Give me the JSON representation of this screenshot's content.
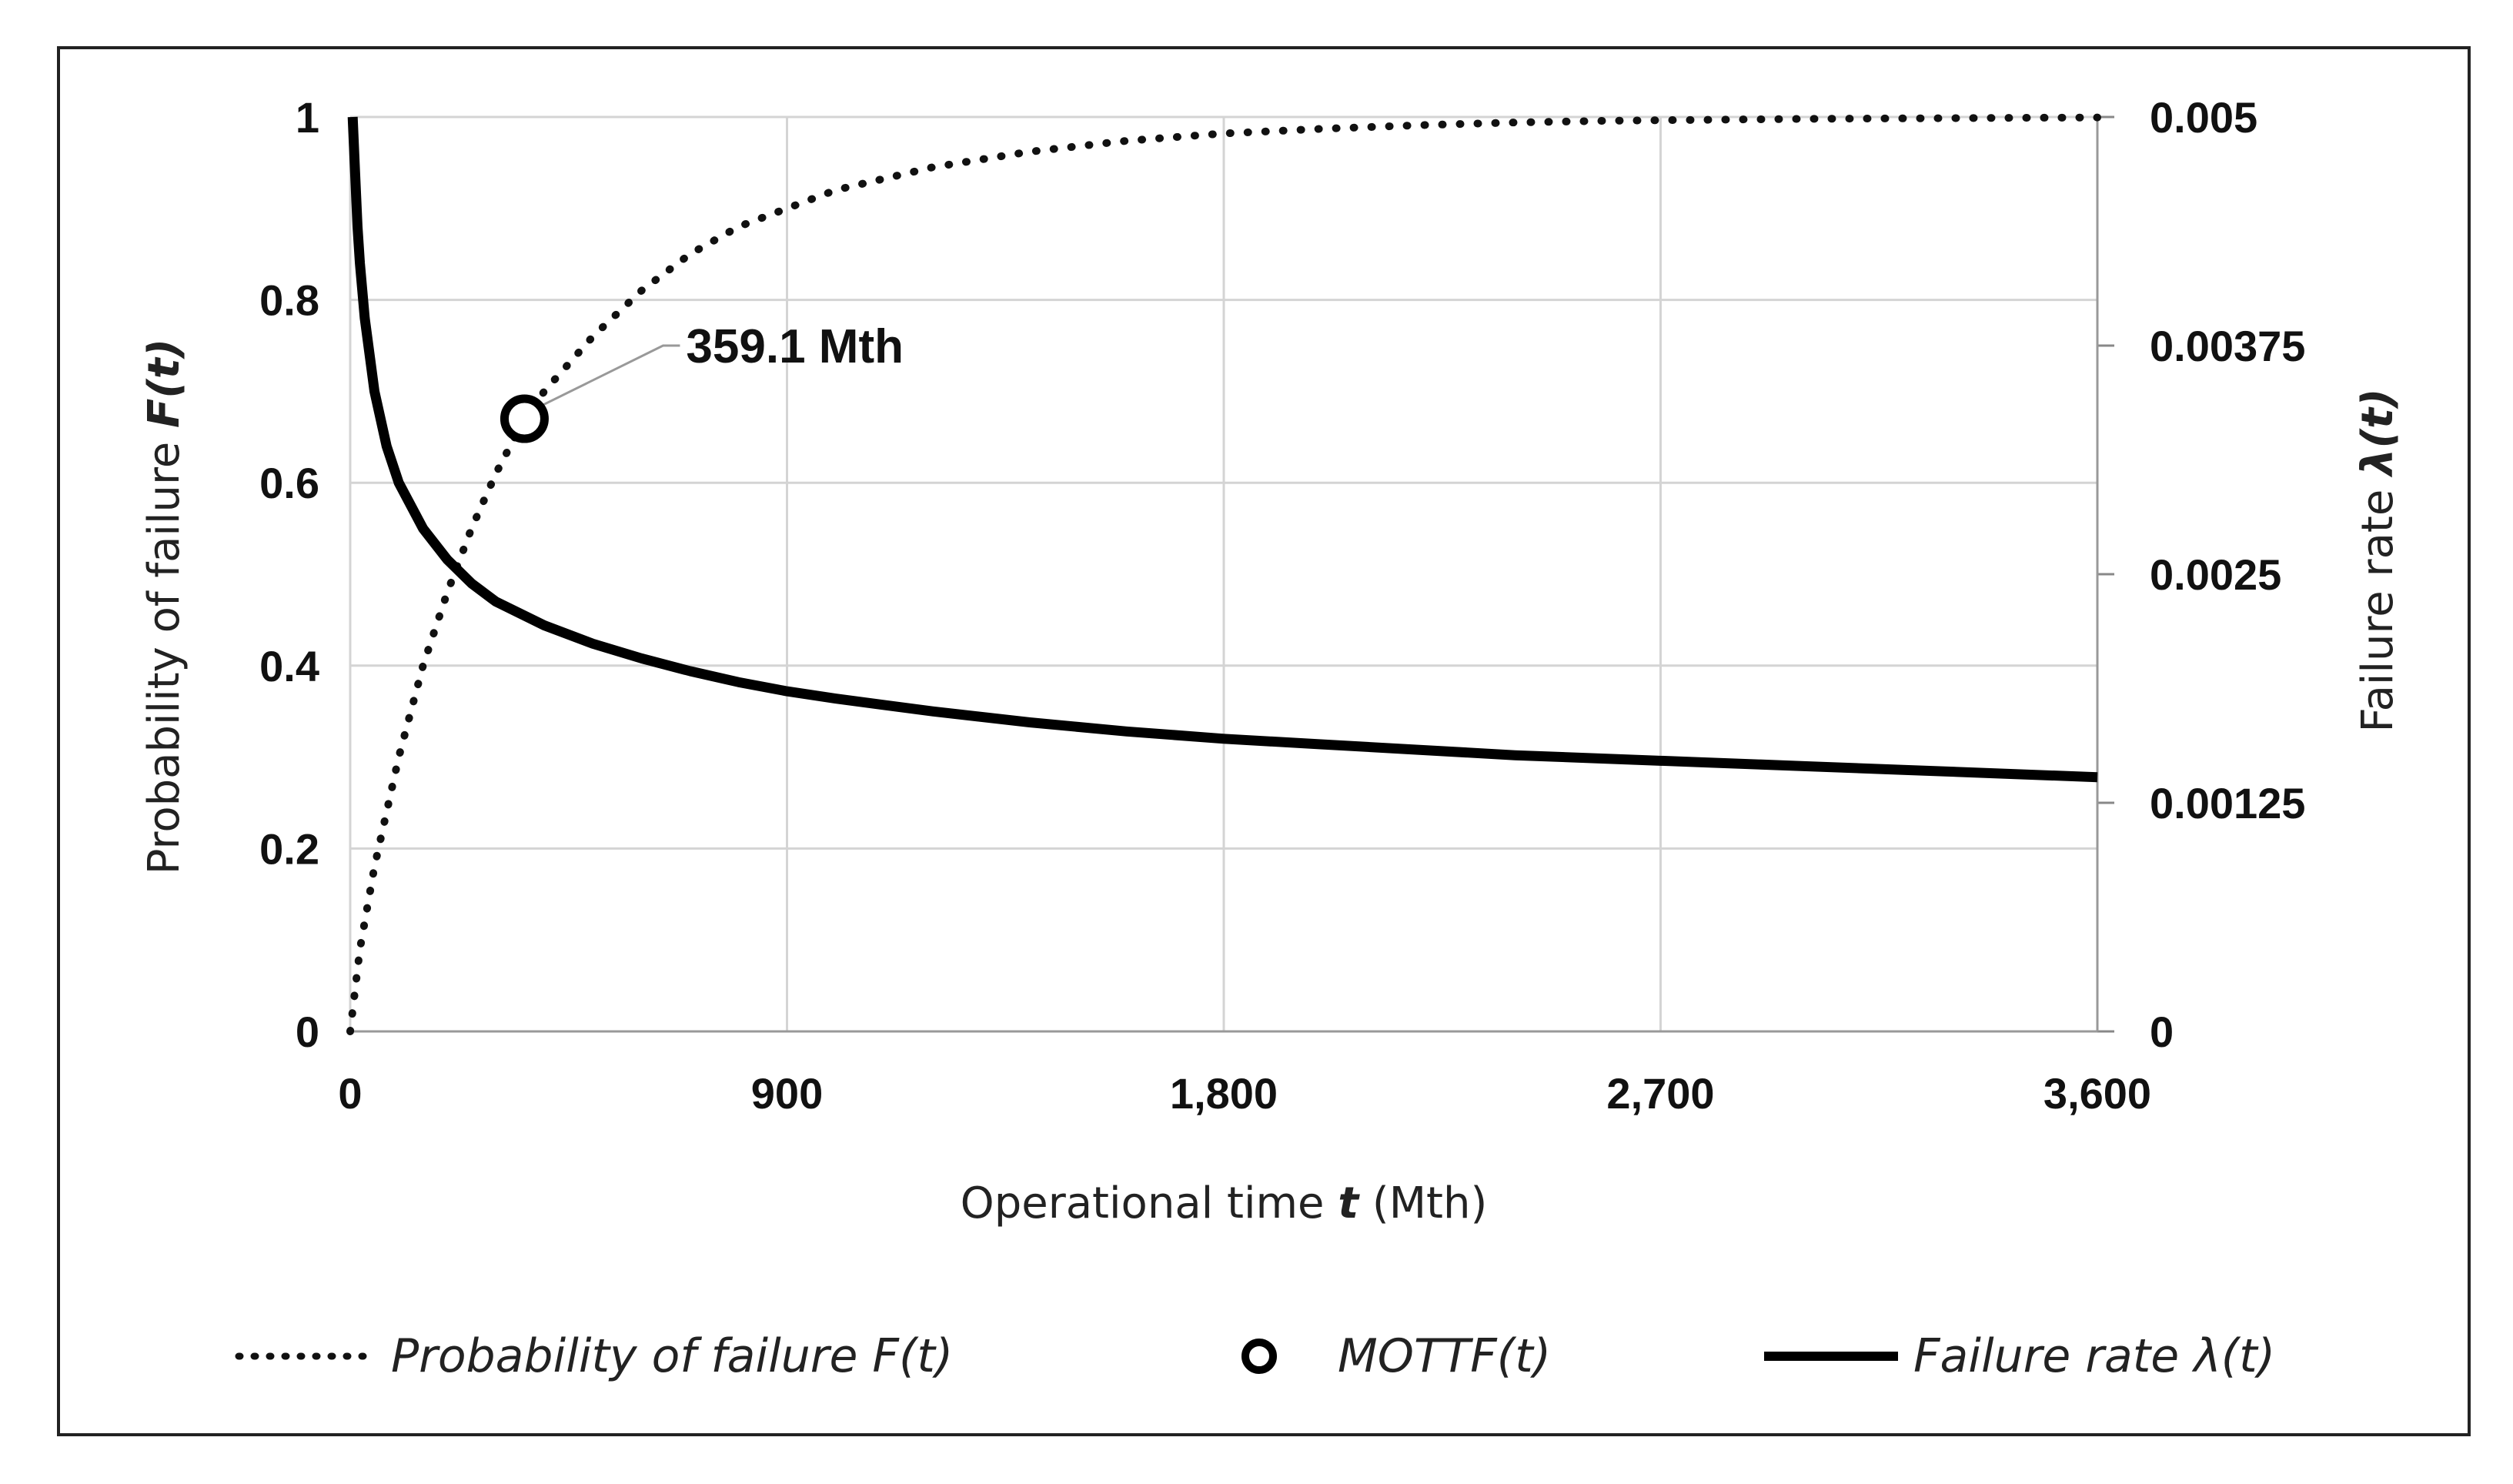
{
  "chart_data": {
    "type": "line",
    "title": "",
    "x": {
      "label_prefix": "Operational time ",
      "label_var": "t",
      "label_suffix": " (Mth)",
      "range": [
        0,
        3600
      ],
      "ticks": [
        0,
        900,
        1800,
        2700,
        3600
      ],
      "tick_labels": [
        "0",
        "900",
        "1,800",
        "2,700",
        "3,600"
      ]
    },
    "y_left": {
      "label_prefix": "Probability of failure ",
      "label_var": "F(t)",
      "range": [
        0,
        1
      ],
      "ticks": [
        0,
        0.2,
        0.4,
        0.6,
        0.8,
        1
      ],
      "tick_labels": [
        "0",
        "0.2",
        "0.4",
        "0.6",
        "0.8",
        "1"
      ]
    },
    "y_right": {
      "label_prefix": "Failure rate ",
      "label_var": "λ(t)",
      "range": [
        0,
        0.005
      ],
      "ticks": [
        0,
        0.00125,
        0.0025,
        0.00375,
        0.005
      ],
      "tick_labels": [
        "0",
        "0.00125",
        "0.0025",
        "0.00375",
        "0.005"
      ]
    },
    "grid": true,
    "series": [
      {
        "name": "Probability of failure F(t)",
        "axis": "left",
        "style": "dotted",
        "color": "#111111",
        "x": [
          0,
          20,
          50,
          100,
          150,
          200,
          250,
          300,
          359.1,
          400,
          500,
          600,
          700,
          800,
          900,
          1000,
          1200,
          1400,
          1600,
          1800,
          2000,
          2200,
          2400,
          2600,
          2800,
          3000,
          3200,
          3400,
          3600
        ],
        "y": [
          0,
          0.09,
          0.18,
          0.3,
          0.4,
          0.48,
          0.55,
          0.61,
          0.67,
          0.7,
          0.76,
          0.81,
          0.85,
          0.88,
          0.9,
          0.92,
          0.945,
          0.962,
          0.974,
          0.982,
          0.987,
          0.991,
          0.994,
          0.996,
          0.997,
          0.998,
          0.9985,
          0.999,
          0.9995
        ]
      },
      {
        "name": "Failure rate λ(t)",
        "axis": "right",
        "style": "solid",
        "color": "#000000",
        "x": [
          5,
          10,
          15,
          20,
          30,
          50,
          75,
          100,
          150,
          200,
          250,
          300,
          400,
          500,
          600,
          700,
          800,
          900,
          1000,
          1200,
          1400,
          1600,
          1800,
          2000,
          2200,
          2400,
          2600,
          2800,
          3000,
          3200,
          3400,
          3600
        ],
        "y": [
          0.005,
          0.0047,
          0.0044,
          0.0042,
          0.0039,
          0.0035,
          0.0032,
          0.003,
          0.00275,
          0.00258,
          0.00245,
          0.00235,
          0.00222,
          0.00212,
          0.00204,
          0.00197,
          0.00191,
          0.00186,
          0.00182,
          0.00175,
          0.00169,
          0.00164,
          0.0016,
          0.00157,
          0.00154,
          0.00151,
          0.00149,
          0.00147,
          0.00145,
          0.00143,
          0.00141,
          0.00139
        ]
      }
    ],
    "markers": [
      {
        "name": "MOTTF(t)",
        "x": 359.1,
        "y": 0.67,
        "axis": "left",
        "label": "359.1 Mth"
      }
    ],
    "legend": {
      "position": "bottom",
      "items": [
        {
          "label": "Probability of failure F(t)",
          "style": "dotted"
        },
        {
          "label": "MOTTF(t)",
          "style": "circle"
        },
        {
          "label": "Failure rate λ(t)",
          "style": "solid"
        }
      ]
    }
  }
}
